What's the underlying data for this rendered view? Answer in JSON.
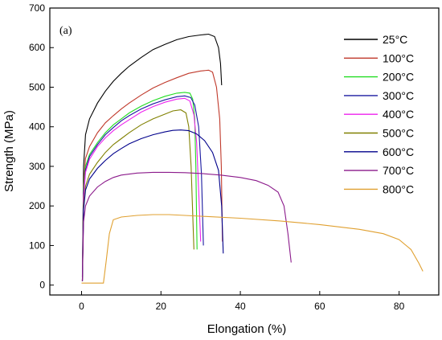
{
  "chart_data": {
    "type": "line",
    "panel_label": "(a)",
    "xlabel": "Elongation (%)",
    "ylabel": "Strength (MPa)",
    "xlim": [
      -8,
      90
    ],
    "ylim": [
      -25,
      700
    ],
    "x_ticks": [
      0,
      20,
      40,
      60,
      80
    ],
    "y_ticks": [
      0,
      100,
      200,
      300,
      400,
      500,
      600,
      700
    ],
    "legend_position": "top-right",
    "grid": false,
    "series": [
      {
        "name": "25°C",
        "color": "#000000",
        "points": [
          [
            0.2,
            20
          ],
          [
            0.5,
            300
          ],
          [
            1,
            380
          ],
          [
            2,
            420
          ],
          [
            4,
            460
          ],
          [
            6,
            490
          ],
          [
            8,
            515
          ],
          [
            10,
            535
          ],
          [
            12,
            553
          ],
          [
            15,
            575
          ],
          [
            18,
            595
          ],
          [
            21,
            608
          ],
          [
            24,
            620
          ],
          [
            27,
            628
          ],
          [
            30,
            632
          ],
          [
            32,
            634
          ],
          [
            33.5,
            628
          ],
          [
            34.5,
            600
          ],
          [
            35,
            560
          ],
          [
            35.3,
            505
          ]
        ]
      },
      {
        "name": "100°C",
        "color": "#c0392b",
        "points": [
          [
            0.2,
            10
          ],
          [
            0.5,
            250
          ],
          [
            1,
            320
          ],
          [
            2,
            350
          ],
          [
            4,
            385
          ],
          [
            6,
            410
          ],
          [
            8,
            428
          ],
          [
            10,
            445
          ],
          [
            12,
            460
          ],
          [
            15,
            480
          ],
          [
            18,
            498
          ],
          [
            21,
            512
          ],
          [
            24,
            524
          ],
          [
            27,
            535
          ],
          [
            30,
            541
          ],
          [
            32,
            543
          ],
          [
            33,
            538
          ],
          [
            34,
            500
          ],
          [
            34.8,
            420
          ],
          [
            35.2,
            300
          ],
          [
            35.5,
            110
          ]
        ]
      },
      {
        "name": "200°C",
        "color": "#22dd22",
        "points": [
          [
            0.2,
            10
          ],
          [
            0.5,
            240
          ],
          [
            1,
            300
          ],
          [
            2,
            330
          ],
          [
            4,
            360
          ],
          [
            6,
            385
          ],
          [
            8,
            405
          ],
          [
            10,
            420
          ],
          [
            12,
            435
          ],
          [
            15,
            452
          ],
          [
            18,
            466
          ],
          [
            21,
            477
          ],
          [
            24,
            485
          ],
          [
            26,
            487
          ],
          [
            27.3,
            485
          ],
          [
            28,
            470
          ],
          [
            28.5,
            420
          ],
          [
            28.8,
            300
          ],
          [
            29.1,
            90
          ]
        ]
      },
      {
        "name": "300°C",
        "color": "#1a1aa0",
        "points": [
          [
            0.2,
            10
          ],
          [
            0.5,
            230
          ],
          [
            1,
            290
          ],
          [
            2,
            325
          ],
          [
            4,
            355
          ],
          [
            6,
            380
          ],
          [
            8,
            398
          ],
          [
            10,
            415
          ],
          [
            12,
            428
          ],
          [
            15,
            445
          ],
          [
            18,
            458
          ],
          [
            21,
            468
          ],
          [
            24,
            476
          ],
          [
            26,
            478
          ],
          [
            27.5,
            474
          ],
          [
            28.5,
            455
          ],
          [
            29.5,
            400
          ],
          [
            30.2,
            280
          ],
          [
            30.7,
            100
          ]
        ]
      },
      {
        "name": "400°C",
        "color": "#ee22ee",
        "points": [
          [
            0.2,
            10
          ],
          [
            0.5,
            220
          ],
          [
            1,
            285
          ],
          [
            2,
            318
          ],
          [
            4,
            350
          ],
          [
            6,
            372
          ],
          [
            8,
            390
          ],
          [
            10,
            405
          ],
          [
            12,
            418
          ],
          [
            15,
            437
          ],
          [
            18,
            451
          ],
          [
            21,
            462
          ],
          [
            24,
            470
          ],
          [
            26,
            472
          ],
          [
            27.3,
            465
          ],
          [
            28.3,
            430
          ],
          [
            29,
            360
          ],
          [
            29.5,
            240
          ],
          [
            30,
            110
          ]
        ]
      },
      {
        "name": "500°C",
        "color": "#808000",
        "points": [
          [
            0.2,
            10
          ],
          [
            0.5,
            200
          ],
          [
            1,
            250
          ],
          [
            2,
            280
          ],
          [
            4,
            310
          ],
          [
            6,
            335
          ],
          [
            8,
            355
          ],
          [
            10,
            370
          ],
          [
            12,
            385
          ],
          [
            15,
            405
          ],
          [
            18,
            420
          ],
          [
            21,
            432
          ],
          [
            23,
            440
          ],
          [
            25,
            443
          ],
          [
            26.3,
            435
          ],
          [
            27,
            400
          ],
          [
            27.6,
            300
          ],
          [
            28,
            180
          ],
          [
            28.3,
            90
          ]
        ]
      },
      {
        "name": "600°C",
        "color": "#00008b",
        "points": [
          [
            0.2,
            10
          ],
          [
            0.5,
            190
          ],
          [
            1,
            240
          ],
          [
            2,
            268
          ],
          [
            4,
            295
          ],
          [
            6,
            315
          ],
          [
            8,
            332
          ],
          [
            10,
            345
          ],
          [
            12,
            357
          ],
          [
            15,
            370
          ],
          [
            18,
            380
          ],
          [
            21,
            387
          ],
          [
            23,
            391
          ],
          [
            25,
            392
          ],
          [
            27,
            390
          ],
          [
            29,
            382
          ],
          [
            31,
            365
          ],
          [
            33,
            335
          ],
          [
            34.5,
            290
          ],
          [
            35.3,
            200
          ],
          [
            35.7,
            80
          ]
        ]
      },
      {
        "name": "700°C",
        "color": "#8b1a8b",
        "points": [
          [
            0.2,
            10
          ],
          [
            0.5,
            160
          ],
          [
            1,
            200
          ],
          [
            2,
            225
          ],
          [
            4,
            248
          ],
          [
            6,
            262
          ],
          [
            8,
            272
          ],
          [
            10,
            278
          ],
          [
            14,
            283
          ],
          [
            18,
            285
          ],
          [
            22,
            285
          ],
          [
            26,
            284
          ],
          [
            30,
            282
          ],
          [
            35,
            278
          ],
          [
            40,
            272
          ],
          [
            44,
            264
          ],
          [
            47,
            252
          ],
          [
            49.5,
            235
          ],
          [
            51,
            200
          ],
          [
            52,
            130
          ],
          [
            52.8,
            57
          ]
        ]
      },
      {
        "name": "800°C",
        "color": "#e0a030",
        "points": [
          [
            0,
            5
          ],
          [
            3,
            5
          ],
          [
            5.5,
            5
          ],
          [
            6.2,
            60
          ],
          [
            7,
            130
          ],
          [
            8,
            165
          ],
          [
            10,
            172
          ],
          [
            14,
            176
          ],
          [
            18,
            178
          ],
          [
            22,
            178
          ],
          [
            26,
            176
          ],
          [
            30,
            174
          ],
          [
            40,
            169
          ],
          [
            50,
            162
          ],
          [
            60,
            153
          ],
          [
            70,
            141
          ],
          [
            76,
            130
          ],
          [
            80,
            115
          ],
          [
            83,
            90
          ],
          [
            85,
            55
          ],
          [
            86,
            35
          ]
        ]
      }
    ]
  }
}
